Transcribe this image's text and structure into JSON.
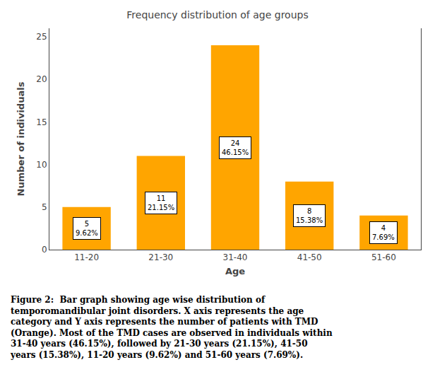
{
  "chart_data": {
    "type": "bar",
    "title": "Frequency distribution of age groups",
    "categories": [
      "11-20",
      "21-30",
      "31-40",
      "41-50",
      "51-60"
    ],
    "values": [
      5,
      11,
      24,
      8,
      4
    ],
    "data_labels": true,
    "value_labels": [
      "5\n9.62%",
      "11\n21.15%",
      "24\n46.15%",
      "8\n15.38%",
      "4\n7.69%"
    ],
    "color": "#FFA500",
    "xlabel": "Age",
    "ylabel": "Number of individuals",
    "ylim": [
      0,
      26
    ],
    "yticks": [
      0,
      5,
      10,
      15,
      20,
      25
    ],
    "grid": false,
    "caption": [
      "Figure 2:  Bar graph showing age wise distribution of",
      "temporomandibular joint disorders. X axis represents the age",
      "category and Y axis represents the number of patients with TMD",
      "(Orange). Most of the TMD cases are observed in individuals within",
      "31-40 years (46.15%), followed by 21-30 years (21.15%), 41-50",
      "years (15.38%), 11-20 years (9.62%) and 51-60 years (7.69%)."
    ]
  }
}
